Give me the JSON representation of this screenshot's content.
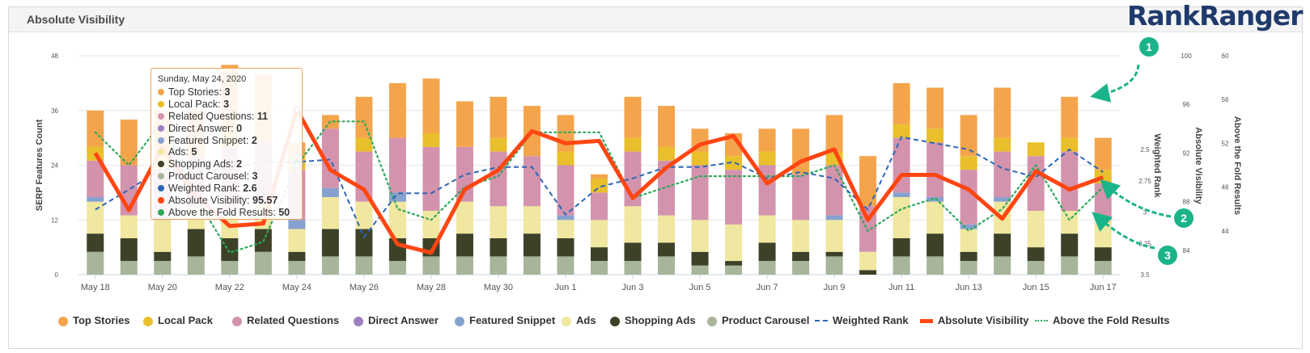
{
  "panel": {
    "title": "Absolute Visibility",
    "logo": "RankRanger"
  },
  "colors": {
    "top_stories": "#f4a54c",
    "local_pack": "#e9bf2c",
    "related_questions": "#d393ad",
    "direct_answer": "#9e7fc0",
    "featured_snippet": "#87a1cf",
    "ads": "#f0e7a0",
    "shopping_ads": "#3d4128",
    "product_carousel": "#a7b59a",
    "weighted_rank": "#2e66b5",
    "absolute_visibility": "#ff4612",
    "above_fold": "#2ea85c",
    "callout": "#1bb38a"
  },
  "chart_data": {
    "type": "bar",
    "title": "Absolute Visibility",
    "categories": [
      "May 18",
      "May 19",
      "May 20",
      "May 21",
      "May 22",
      "May 23",
      "May 24",
      "May 25",
      "May 26",
      "May 27",
      "May 28",
      "May 29",
      "May 30",
      "May 31",
      "Jun 1",
      "Jun 2",
      "Jun 3",
      "Jun 4",
      "Jun 5",
      "Jun 6",
      "Jun 7",
      "Jun 8",
      "Jun 9",
      "Jun 10",
      "Jun 11",
      "Jun 12",
      "Jun 13",
      "Jun 14",
      "Jun 15",
      "Jun 16",
      "Jun 17"
    ],
    "x_tick_labels": [
      "May 18",
      "May 20",
      "May 22",
      "May 24",
      "May 26",
      "May 28",
      "May 30",
      "Jun 1",
      "Jun 3",
      "Jun 5",
      "Jun 7",
      "Jun 9",
      "Jun 11",
      "Jun 13",
      "Jun 15",
      "Jun 17"
    ],
    "stacked_series": [
      {
        "key": "product_carousel",
        "name": "Product Carousel",
        "values": [
          5,
          3,
          3,
          4,
          3,
          5,
          3,
          4,
          4,
          3,
          4,
          4,
          4,
          4,
          4,
          3,
          3,
          4,
          2,
          2,
          3,
          3,
          4,
          0,
          4,
          4,
          3,
          4,
          3,
          4,
          3
        ]
      },
      {
        "key": "shopping_ads",
        "name": "Shopping Ads",
        "values": [
          4,
          5,
          2,
          6,
          5,
          5,
          2,
          6,
          6,
          5,
          4,
          5,
          4,
          5,
          4,
          3,
          4,
          3,
          3,
          1,
          4,
          2,
          1,
          1,
          4,
          5,
          2,
          5,
          3,
          5,
          3
        ]
      },
      {
        "key": "ads",
        "name": "Ads",
        "values": [
          7,
          5,
          7,
          5,
          5,
          6,
          5,
          7,
          6,
          8,
          6,
          7,
          7,
          6,
          4,
          6,
          8,
          6,
          7,
          8,
          6,
          7,
          7,
          4,
          9,
          7,
          5,
          7,
          8,
          5,
          6
        ]
      },
      {
        "key": "featured_snippet",
        "name": "Featured Snippet",
        "values": [
          1,
          0,
          1,
          0,
          1,
          0,
          2,
          2,
          0,
          2,
          0,
          0,
          0,
          0,
          1,
          0,
          0,
          0,
          0,
          0,
          0,
          0,
          1,
          0,
          1,
          1,
          1,
          1,
          0,
          0,
          0
        ]
      },
      {
        "key": "direct_answer",
        "name": "Direct Answer",
        "values": [
          0,
          0,
          0,
          0,
          0,
          0,
          0,
          0,
          0,
          0,
          0,
          0,
          0,
          0,
          0,
          0,
          0,
          0,
          0,
          0,
          0,
          0,
          0,
          0,
          0,
          0,
          0,
          0,
          0,
          0,
          0
        ]
      },
      {
        "key": "related_questions",
        "name": "Related Questions",
        "values": [
          8,
          11,
          10,
          11,
          14,
          13,
          11,
          13,
          11,
          12,
          14,
          12,
          12,
          11,
          11,
          6,
          12,
          12,
          12,
          12,
          11,
          10,
          11,
          10,
          12,
          12,
          12,
          10,
          12,
          13,
          8
        ]
      },
      {
        "key": "local_pack",
        "name": "Local Pack",
        "values": [
          3,
          0,
          3,
          0,
          3,
          0,
          3,
          0,
          3,
          0,
          3,
          0,
          3,
          0,
          3,
          3,
          3,
          3,
          3,
          3,
          3,
          0,
          3,
          0,
          3,
          3,
          3,
          3,
          3,
          3,
          3
        ]
      },
      {
        "key": "top_stories",
        "name": "Top Stories",
        "values": [
          8,
          10,
          10,
          10,
          15,
          15,
          3,
          3,
          9,
          12,
          12,
          10,
          9,
          11,
          8,
          1,
          9,
          9,
          5,
          5,
          5,
          10,
          8,
          11,
          9,
          9,
          9,
          11,
          0,
          9,
          7
        ]
      }
    ],
    "line_series": [
      {
        "key": "weighted_rank",
        "name": "Weighted Rank",
        "axis": "Weighted Rank",
        "values": [
          2.98,
          2.82,
          2.65,
          2.68,
          2.65,
          2.6,
          2.6,
          2.58,
          3.2,
          2.85,
          2.85,
          2.7,
          2.64,
          2.64,
          3.02,
          2.8,
          2.73,
          2.64,
          2.64,
          2.6,
          2.73,
          2.68,
          2.73,
          2.98,
          2.4,
          2.45,
          2.5,
          2.65,
          2.72,
          2.5,
          2.68
        ]
      },
      {
        "key": "absolute_visibility",
        "name": "Absolute Visibility",
        "axis": "Absolute Visibility",
        "values": [
          92,
          87.3,
          92.5,
          88.5,
          86,
          86.2,
          95.57,
          90.6,
          89,
          84.5,
          83.8,
          89,
          90.6,
          93.8,
          92.8,
          93,
          88.3,
          90.8,
          92.7,
          93.4,
          89.5,
          91.3,
          92.3,
          86.5,
          90.2,
          90.2,
          89,
          86.6,
          90.5,
          89,
          90
        ]
      },
      {
        "key": "above_fold",
        "name": "Above the Fold Results",
        "axis": "Above the Fold Results",
        "values": [
          53,
          50,
          54,
          47,
          42,
          43,
          50,
          54,
          54,
          46,
          45,
          48,
          49,
          53,
          53,
          53,
          47,
          48,
          49,
          49,
          49,
          49,
          50,
          44,
          46,
          47,
          44,
          46,
          50,
          45,
          48
        ]
      }
    ],
    "axes": {
      "left": {
        "label": "SERP Features Count",
        "range": [
          0,
          48
        ],
        "ticks": [
          "0",
          "12",
          "24",
          "36",
          "48"
        ]
      },
      "weighted_rank": {
        "label": "Weighted Rank",
        "range": [
          3.5,
          1.75
        ],
        "ticks": [
          "3.5",
          "3.25",
          "3",
          "2.75",
          "2.5"
        ]
      },
      "absolute_visibility": {
        "label": "Absolute Visibility",
        "range": [
          82,
          100
        ],
        "ticks": [
          "84",
          "88",
          "92",
          "96",
          "100"
        ]
      },
      "above_fold": {
        "label": "Above the Fold Results",
        "range": [
          40,
          60
        ],
        "ticks": [
          "44",
          "48",
          "52",
          "56",
          "60"
        ]
      }
    },
    "highlight_index": 6,
    "callouts": [
      "1",
      "2",
      "3"
    ]
  },
  "tooltip": {
    "date": "Sunday, May 24, 2020",
    "rows": [
      {
        "label": "Top Stories",
        "value": "3",
        "color": "#f4a54c"
      },
      {
        "label": "Local Pack",
        "value": "3",
        "color": "#e9bf2c"
      },
      {
        "label": "Related Questions",
        "value": "11",
        "color": "#d393ad"
      },
      {
        "label": "Direct Answer",
        "value": "0",
        "color": "#9e7fc0"
      },
      {
        "label": "Featured Snippet",
        "value": "2",
        "color": "#87a1cf"
      },
      {
        "label": "Ads",
        "value": "5",
        "color": "#f0e7a0"
      },
      {
        "label": "Shopping Ads",
        "value": "2",
        "color": "#3d4128"
      },
      {
        "label": "Product Carousel",
        "value": "3",
        "color": "#a7b59a"
      },
      {
        "label": "Weighted Rank",
        "value": "2.6",
        "color": "#2e66b5"
      },
      {
        "label": "Absolute Visibility",
        "value": "95.57",
        "color": "#ff4612"
      },
      {
        "label": "Above the Fold Results",
        "value": "50",
        "color": "#2ea85c"
      }
    ]
  },
  "legend": [
    {
      "label": "Top Stories",
      "kind": "dot",
      "color": "#f4a54c"
    },
    {
      "label": "Local Pack",
      "kind": "dot",
      "color": "#e9bf2c"
    },
    {
      "label": "Related Questions",
      "kind": "dot",
      "color": "#d393ad"
    },
    {
      "label": "Direct Answer",
      "kind": "dot",
      "color": "#9e7fc0"
    },
    {
      "label": "Featured Snippet",
      "kind": "dot",
      "color": "#87a1cf"
    },
    {
      "label": "Ads",
      "kind": "dot",
      "color": "#f0e7a0"
    },
    {
      "label": "Shopping Ads",
      "kind": "dot",
      "color": "#3d4128"
    },
    {
      "label": "Product Carousel",
      "kind": "dot",
      "color": "#a7b59a"
    },
    {
      "label": "Weighted Rank",
      "kind": "dashed",
      "color": "#2e66b5"
    },
    {
      "label": "Absolute Visibility",
      "kind": "solid",
      "color": "#ff4612"
    },
    {
      "label": "Above the Fold Results",
      "kind": "dotted",
      "color": "#2ea85c"
    }
  ]
}
